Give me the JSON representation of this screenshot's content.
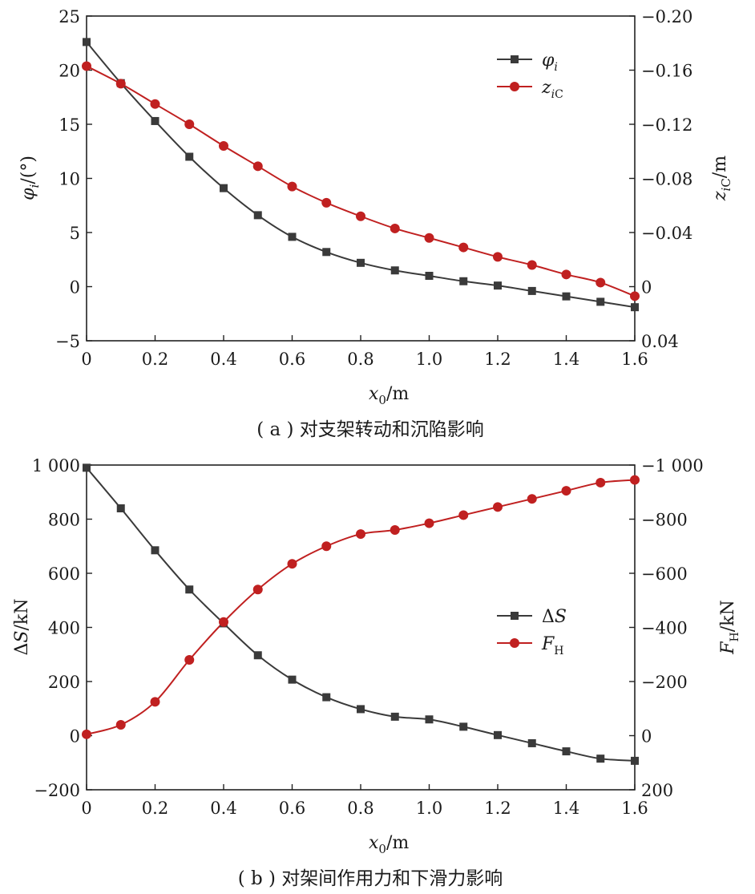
{
  "chart_data": [
    {
      "type": "line",
      "caption": "( a ) 对支架转动和沉陷影响",
      "xlabel": "x₀/m",
      "ylabel_left": "φᵢ/(°)",
      "ylabel_right": "z_iC/m",
      "xlim": [
        0,
        1.6
      ],
      "ylim_left": [
        -5,
        25
      ],
      "ylim_right_display": [
        0.04,
        -0.2
      ],
      "x_ticks": [
        "0",
        "0.2",
        "0.4",
        "0.6",
        "0.8",
        "1.0",
        "1.2",
        "1.4",
        "1.6"
      ],
      "y_left_ticks": [
        "−5",
        "0",
        "5",
        "10",
        "15",
        "20",
        "25"
      ],
      "y_right_ticks": [
        "0.04",
        "0",
        "−0.04",
        "−0.08",
        "−0.12",
        "−0.16",
        "−0.20"
      ],
      "legend_position": "top-right",
      "x": [
        0,
        0.1,
        0.2,
        0.3,
        0.4,
        0.5,
        0.6,
        0.7,
        0.8,
        0.9,
        1.0,
        1.1,
        1.2,
        1.3,
        1.4,
        1.5,
        1.6
      ],
      "series": [
        {
          "name": "φ_i",
          "label_main": "φ",
          "label_sub": "i",
          "axis": "left",
          "marker": "square",
          "color": "#3a3a3a",
          "values": [
            22.6,
            18.8,
            15.3,
            12.0,
            9.1,
            6.6,
            4.6,
            3.2,
            2.2,
            1.5,
            1.0,
            0.5,
            0.1,
            -0.4,
            -0.9,
            -1.4,
            -1.9
          ]
        },
        {
          "name": "z_iC",
          "label_main": "z",
          "label_sub": "iC",
          "axis": "right",
          "marker": "circle",
          "color": "#c02020",
          "values": [
            -0.163,
            -0.15,
            -0.135,
            -0.12,
            -0.104,
            -0.089,
            -0.074,
            -0.062,
            -0.052,
            -0.043,
            -0.036,
            -0.029,
            -0.022,
            -0.016,
            -0.009,
            -0.003,
            0.007
          ]
        }
      ]
    },
    {
      "type": "line",
      "caption": "( b ) 对架间作用力和下滑力影响",
      "xlabel": "x₀/m",
      "ylabel_left": "ΔS/kN",
      "ylabel_right": "F_H/kN",
      "xlim": [
        0,
        1.6
      ],
      "ylim_left": [
        -200,
        1000
      ],
      "ylim_right_display": [
        200,
        -1000
      ],
      "x_ticks": [
        "0",
        "0.2",
        "0.4",
        "0.6",
        "0.8",
        "1.0",
        "1.2",
        "1.4",
        "1.6"
      ],
      "y_left_ticks": [
        "−200",
        "0",
        "200",
        "400",
        "600",
        "800",
        "1 000"
      ],
      "y_right_ticks": [
        "200",
        "0",
        "−200",
        "−400",
        "−600",
        "−800",
        "−1 000"
      ],
      "legend_position": "center-right",
      "x": [
        0,
        0.1,
        0.2,
        0.3,
        0.4,
        0.5,
        0.6,
        0.7,
        0.8,
        0.9,
        1.0,
        1.1,
        1.2,
        1.3,
        1.4,
        1.5,
        1.6
      ],
      "series": [
        {
          "name": "ΔS",
          "label_main": "ΔS",
          "label_sub": "",
          "axis": "left",
          "marker": "square",
          "color": "#3a3a3a",
          "values": [
            990,
            840,
            685,
            540,
            415,
            297,
            207,
            142,
            98,
            70,
            60,
            33,
            2,
            -28,
            -58,
            -85,
            -93
          ]
        },
        {
          "name": "F_H",
          "label_main": "F",
          "label_sub": "H",
          "axis": "right",
          "marker": "circle",
          "color": "#c02020",
          "values": [
            -5,
            -40,
            -125,
            -280,
            -420,
            -540,
            -635,
            -700,
            -745,
            -760,
            -785,
            -815,
            -845,
            -875,
            -905,
            -935,
            -945
          ]
        }
      ]
    }
  ]
}
